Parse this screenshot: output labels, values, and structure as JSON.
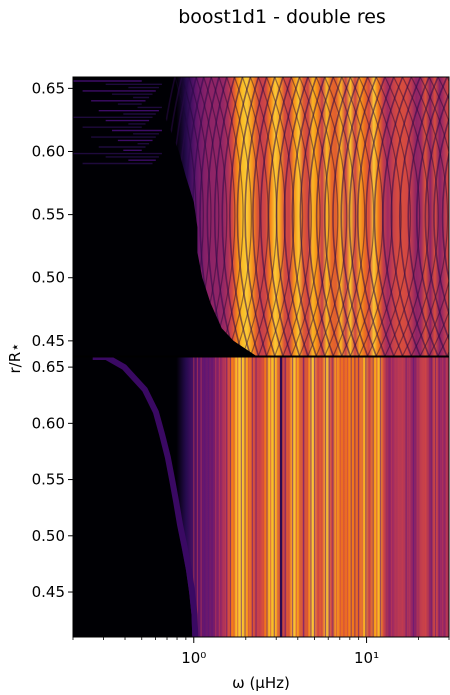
{
  "title": "boost1d1 - double res",
  "ylabel": "r/R⋆",
  "xlabel": "ω (μHz)",
  "chart_data": [
    {
      "type": "heatmap",
      "panel": "top",
      "title": "boost1d1 - double res",
      "xlabel": "",
      "ylabel": "r/R⋆",
      "xscale": "log",
      "xlim": [
        0.2,
        30
      ],
      "ylim": [
        0.438,
        0.659
      ],
      "yticks": [
        0.45,
        0.5,
        0.55,
        0.6,
        0.65
      ],
      "ytick_labels": [
        "0.45",
        "0.50",
        "0.55",
        "0.60",
        "0.65"
      ],
      "xticks": [
        1,
        10
      ],
      "xtick_labels": [
        "10⁰",
        "10¹"
      ],
      "colormap": "inferno",
      "description_of_values": "dark region at low frequency; bright orange/purple bands above ~0.8 μHz with curved fringe pattern"
    },
    {
      "type": "heatmap",
      "panel": "bottom",
      "xlabel": "ω (μHz)",
      "ylabel": "r/R⋆",
      "xscale": "log",
      "xlim": [
        0.2,
        30
      ],
      "ylim": [
        0.41,
        0.659
      ],
      "yticks": [
        0.45,
        0.5,
        0.55,
        0.6,
        0.65
      ],
      "ytick_labels": [
        "0.45",
        "0.50",
        "0.55",
        "0.60",
        "0.65"
      ],
      "xticks": [
        1,
        10
      ],
      "xtick_labels": [
        "10⁰",
        "10¹"
      ],
      "colormap": "inferno",
      "description_of_values": "dark region at low frequency; vertical bright bands above ~1 μHz"
    }
  ]
}
